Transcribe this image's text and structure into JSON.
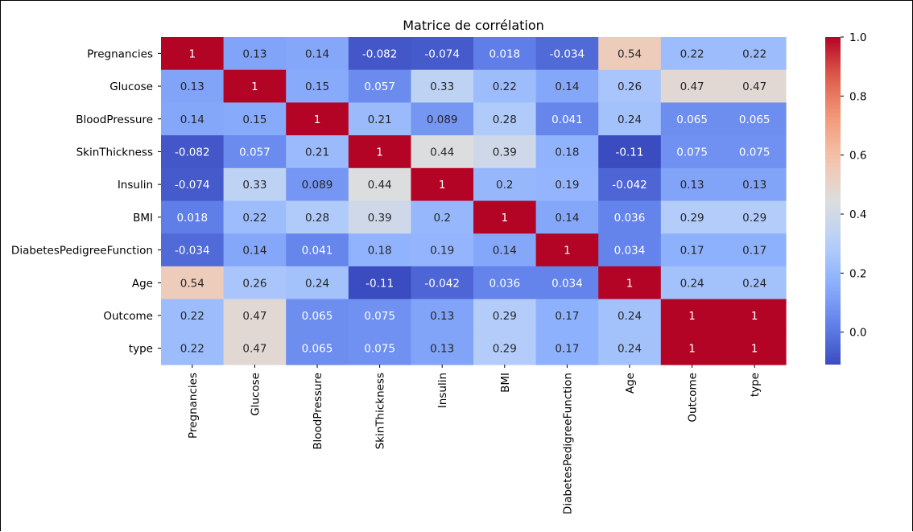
{
  "chart_data": {
    "type": "heatmap",
    "title": "Matrice de corrélation",
    "xlabel": "",
    "ylabel": "",
    "labels": [
      "Pregnancies",
      "Glucose",
      "BloodPressure",
      "SkinThickness",
      "Insulin",
      "BMI",
      "DiabetesPedigreeFunction",
      "Age",
      "Outcome",
      "type"
    ],
    "values": [
      [
        1,
        0.13,
        0.14,
        -0.082,
        -0.074,
        0.018,
        -0.034,
        0.54,
        0.22,
        0.22
      ],
      [
        0.13,
        1,
        0.15,
        0.057,
        0.33,
        0.22,
        0.14,
        0.26,
        0.47,
        0.47
      ],
      [
        0.14,
        0.15,
        1,
        0.21,
        0.089,
        0.28,
        0.041,
        0.24,
        0.065,
        0.065
      ],
      [
        -0.082,
        0.057,
        0.21,
        1,
        0.44,
        0.39,
        0.18,
        -0.11,
        0.075,
        0.075
      ],
      [
        -0.074,
        0.33,
        0.089,
        0.44,
        1,
        0.2,
        0.19,
        -0.042,
        0.13,
        0.13
      ],
      [
        0.018,
        0.22,
        0.28,
        0.39,
        0.2,
        1,
        0.14,
        0.036,
        0.29,
        0.29
      ],
      [
        -0.034,
        0.14,
        0.041,
        0.18,
        0.19,
        0.14,
        1,
        0.034,
        0.17,
        0.17
      ],
      [
        0.54,
        0.26,
        0.24,
        -0.11,
        -0.042,
        0.036,
        0.034,
        1,
        0.24,
        0.24
      ],
      [
        0.22,
        0.47,
        0.065,
        0.075,
        0.13,
        0.29,
        0.17,
        0.24,
        1,
        1
      ],
      [
        0.22,
        0.47,
        0.065,
        0.075,
        0.13,
        0.29,
        0.17,
        0.24,
        1,
        1
      ]
    ],
    "colormap": "coolwarm",
    "vmin": -0.11,
    "vmax": 1.0,
    "colorbar_ticks": [
      0.0,
      0.2,
      0.4,
      0.6,
      0.8,
      1.0
    ],
    "colorbar_tick_labels": [
      "0.0",
      "0.2",
      "0.4",
      "0.6",
      "0.8",
      "1.0"
    ],
    "annotate": true,
    "colorbar_position": "right"
  }
}
